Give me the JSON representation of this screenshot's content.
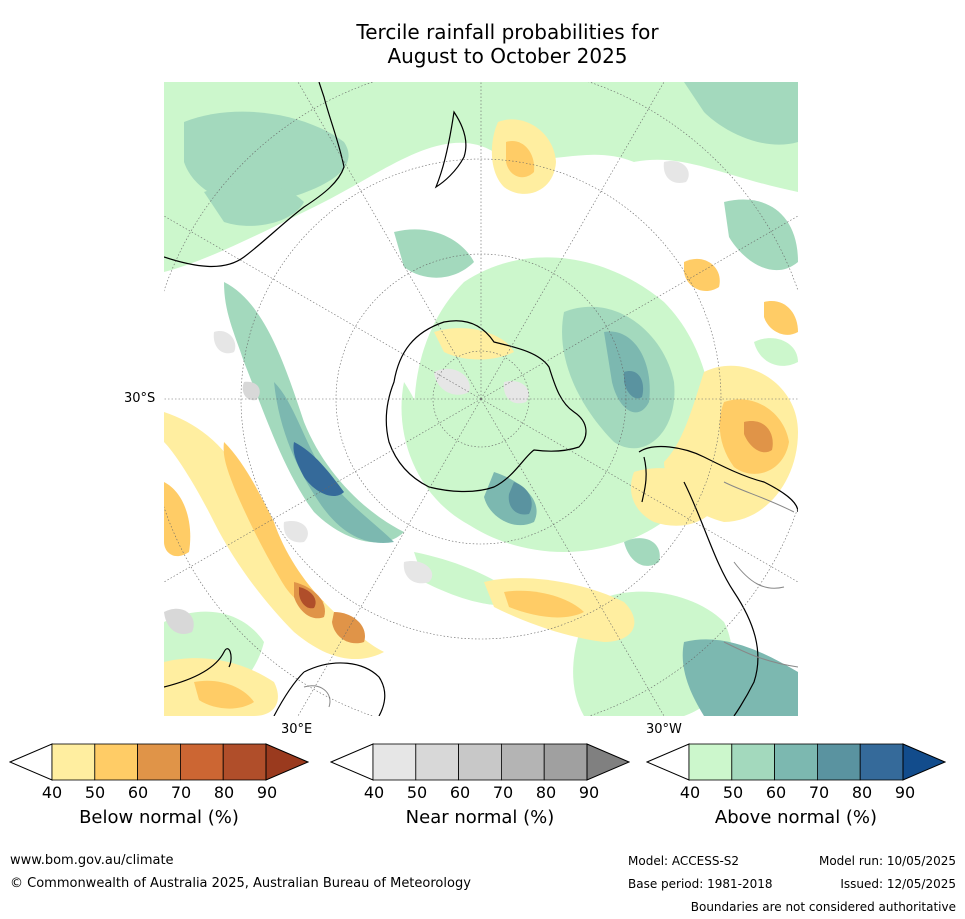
{
  "title": {
    "line1": "Tercile rainfall probabilities for",
    "line2": "August to October 2025"
  },
  "map": {
    "projection": "south-polar-stereographic",
    "lat_label": "30°S",
    "lon_labels": [
      "30°E",
      "30°W"
    ]
  },
  "colorbars": [
    {
      "label": "Below normal (%)",
      "ticks": [
        "40",
        "50",
        "60",
        "70",
        "80",
        "90"
      ],
      "colors": [
        "#ffffff",
        "#ffeea0",
        "#ffcc66",
        "#e09448",
        "#cc6633",
        "#b04e2a",
        "#9a3a1e"
      ]
    },
    {
      "label": "Near normal (%)",
      "ticks": [
        "40",
        "50",
        "60",
        "70",
        "80",
        "90"
      ],
      "colors": [
        "#ffffff",
        "#e6e6e6",
        "#d8d8d8",
        "#c8c8c8",
        "#b4b4b4",
        "#a0a0a0",
        "#808080"
      ]
    },
    {
      "label": "Above normal (%)",
      "ticks": [
        "40",
        "50",
        "60",
        "70",
        "80",
        "90"
      ],
      "colors": [
        "#ffffff",
        "#ccf7cc",
        "#a3d9bd",
        "#7cb8b0",
        "#5a93a0",
        "#356a9a",
        "#124c8c"
      ]
    }
  ],
  "footer": {
    "url": "www.bom.gov.au/climate",
    "copyright": "© Commonwealth of Australia 2025, Australian Bureau of Meteorology",
    "model": "Model: ACCESS-S2",
    "base_period": "Base period: 1981-2018",
    "model_run": "Model run: 10/05/2025",
    "issued": "Issued: 12/05/2025",
    "disclaimer": "Boundaries are not considered authoritative"
  }
}
